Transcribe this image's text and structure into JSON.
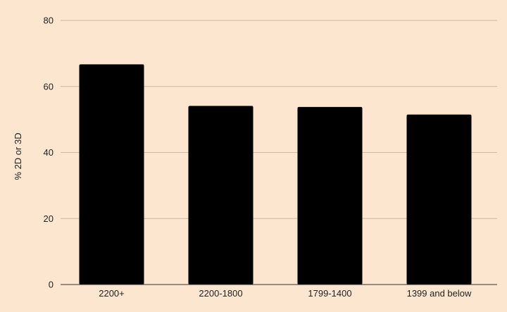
{
  "colors": {
    "background": "#FCE6D0",
    "bar": "#000000",
    "gridline": "#C9B9A6",
    "axis_line": "#333333",
    "text": "#222222"
  },
  "chart_data": {
    "type": "bar",
    "categories": [
      "2200+",
      "2200-1800",
      "1799-1400",
      "1399 and below"
    ],
    "values": [
      66.7,
      54.1,
      53.8,
      51.5
    ],
    "title": "",
    "xlabel": "",
    "ylabel": "% 2D or 3D",
    "ylim": [
      0,
      80
    ],
    "yticks": [
      0,
      20,
      40,
      60,
      80
    ],
    "grid": true,
    "legend": "none"
  }
}
